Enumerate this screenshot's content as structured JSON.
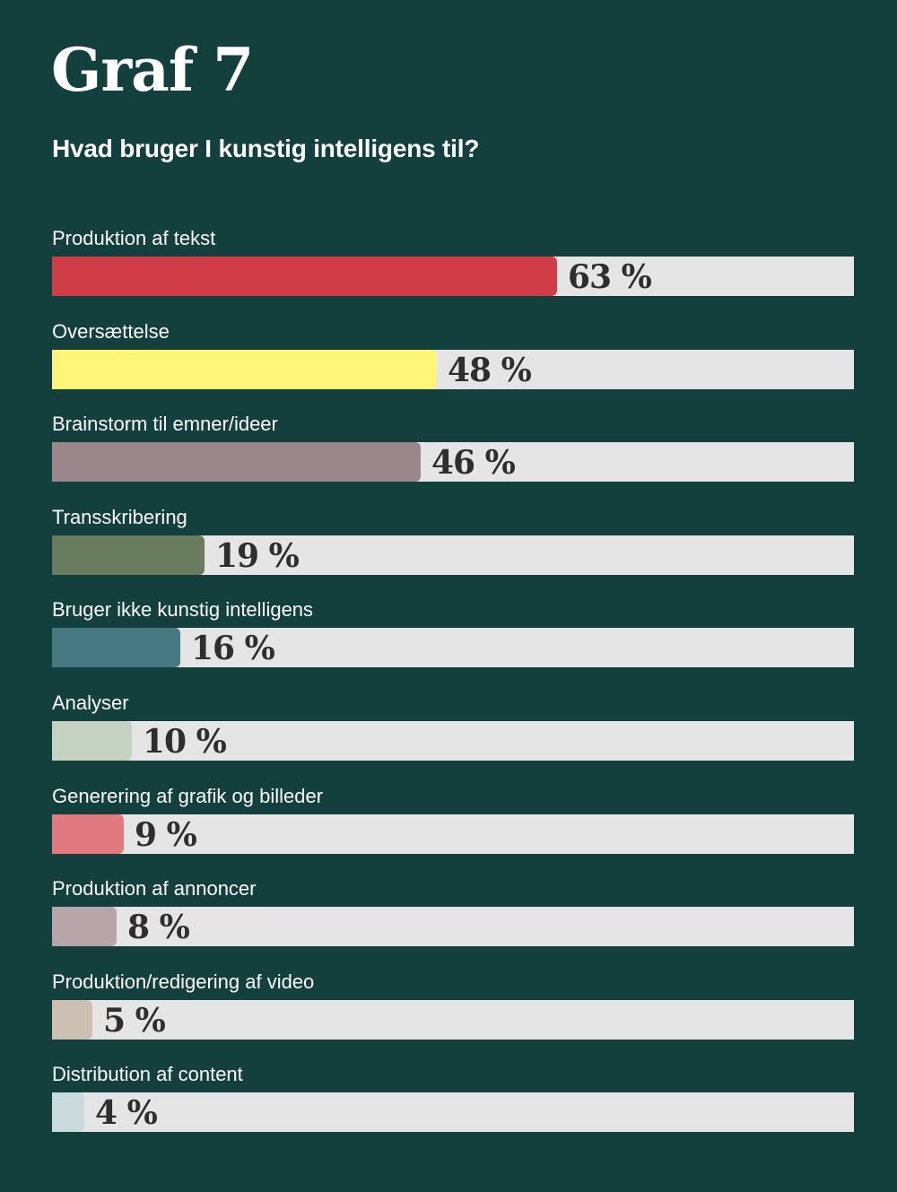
{
  "header": {
    "title": "Graf 7",
    "subtitle": "Hvad bruger I kunstig intelligens til?"
  },
  "chart_data": {
    "type": "bar",
    "orientation": "horizontal",
    "categories": [
      "Produktion af tekst",
      "Oversættelse",
      "Brainstorm til emner/ideer",
      "Transskribering",
      "Bruger ikke kunstig intelligens",
      "Analyser",
      "Generering af grafik og billeder",
      "Produktion af annoncer",
      "Produktion/redigering af video",
      "Distribution af content"
    ],
    "values": [
      63,
      48,
      46,
      19,
      16,
      10,
      9,
      8,
      5,
      4
    ],
    "value_labels": [
      "63 %",
      "48 %",
      "46 %",
      "19 %",
      "16 %",
      "10 %",
      "9 %",
      "8 %",
      "5 %",
      "4 %"
    ],
    "colors": [
      "#d13d46",
      "#fff679",
      "#9b868c",
      "#687b5e",
      "#477983",
      "#c6d2c1",
      "#e07a80",
      "#b8a5aa",
      "#cdc0b2",
      "#c9dcdb"
    ],
    "xlim": [
      0,
      100
    ],
    "grid": false,
    "legend": false,
    "track_color": "#e6e5e5"
  }
}
